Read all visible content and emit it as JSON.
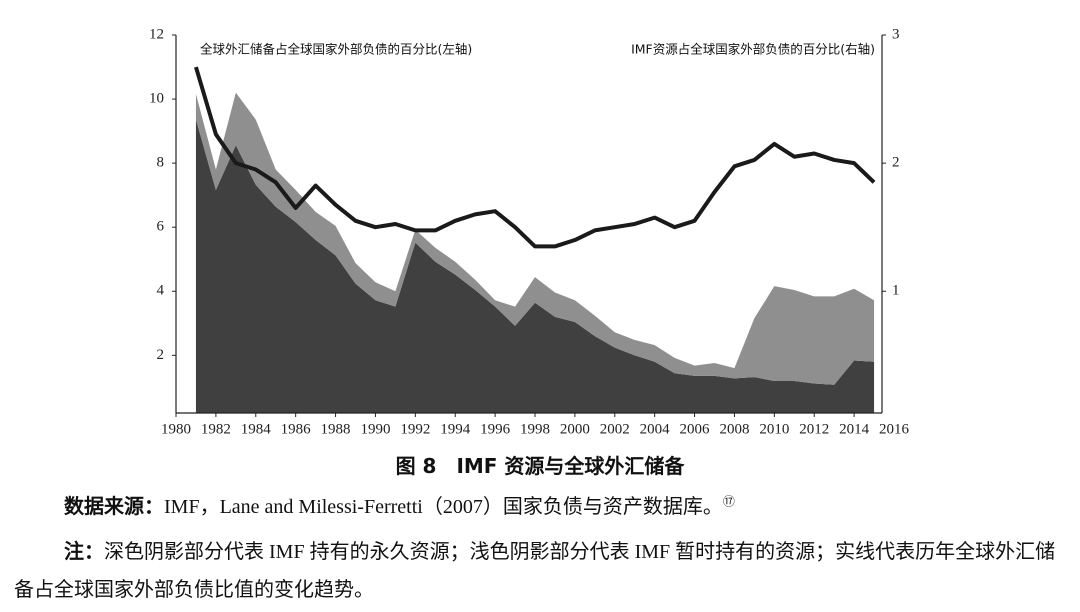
{
  "chart_data": {
    "type": "area",
    "stacked": true,
    "annotations": [
      "全球外汇储备占全球国家外部负债的百分比(左轴)",
      "IMF资源占全球国家外部负债的百分比(右轴)"
    ],
    "x": [
      1981,
      1982,
      1983,
      1984,
      1985,
      1986,
      1987,
      1988,
      1989,
      1990,
      1991,
      1992,
      1993,
      1994,
      1995,
      1996,
      1997,
      1998,
      1999,
      2000,
      2001,
      2002,
      2003,
      2004,
      2005,
      2006,
      2007,
      2008,
      2009,
      2010,
      2011,
      2012,
      2013,
      2014,
      2015
    ],
    "series": [
      {
        "type": "area",
        "axis": "y2",
        "color": "#404040",
        "values": [
          2.34,
          1.79,
          2.14,
          1.83,
          1.66,
          1.54,
          1.4,
          1.28,
          1.06,
          0.93,
          0.88,
          1.38,
          1.23,
          1.13,
          1.01,
          0.88,
          0.73,
          0.91,
          0.8,
          0.76,
          0.65,
          0.56,
          0.5,
          0.45,
          0.36,
          0.34,
          0.34,
          0.32,
          0.33,
          0.3,
          0.3,
          0.28,
          0.27,
          0.46,
          0.45
        ]
      },
      {
        "type": "area",
        "axis": "y2",
        "color": "#8f8f8f",
        "values": [
          0.2,
          0.16,
          0.41,
          0.51,
          0.29,
          0.25,
          0.22,
          0.23,
          0.16,
          0.14,
          0.12,
          0.1,
          0.11,
          0.1,
          0.08,
          0.05,
          0.15,
          0.2,
          0.19,
          0.17,
          0.16,
          0.12,
          0.12,
          0.13,
          0.12,
          0.08,
          0.1,
          0.08,
          0.46,
          0.74,
          0.71,
          0.68,
          0.69,
          0.56,
          0.48
        ]
      },
      {
        "type": "line",
        "axis": "y",
        "color": "#1a1a1a",
        "values": [
          11.0,
          8.9,
          8.0,
          7.8,
          7.4,
          6.6,
          7.3,
          6.7,
          6.2,
          6.0,
          6.1,
          5.9,
          5.9,
          6.2,
          6.4,
          6.5,
          6.0,
          5.4,
          5.4,
          5.6,
          5.9,
          6.0,
          6.1,
          6.3,
          6.0,
          6.2,
          7.1,
          7.9,
          8.1,
          8.6,
          8.2,
          8.3,
          8.1,
          8.0,
          7.4
        ]
      }
    ],
    "xlim": [
      1980,
      2016
    ],
    "xticks": [
      1980,
      1982,
      1984,
      1986,
      1988,
      1990,
      1992,
      1994,
      1996,
      1998,
      2000,
      2002,
      2004,
      2006,
      2008,
      2010,
      2012,
      2014,
      2016
    ],
    "ylim": [
      0.2,
      12
    ],
    "yticks": [
      2,
      4,
      6,
      8,
      10,
      12
    ],
    "y2lim": [
      0.05,
      3
    ],
    "y2ticks": [
      1,
      2,
      3
    ]
  },
  "caption": "图 8　IMF 资源与全球外汇储备",
  "source": {
    "label": "数据来源：",
    "text": "IMF，Lane and Milessi-Ferretti（2007）国家负债与资产数据库。",
    "footnote": "⑰"
  },
  "note": {
    "label": "注：",
    "text": "深色阴影部分代表 IMF 持有的永久资源；浅色阴影部分代表 IMF 暂时持有的资源；实线代表历年全球外汇储备占全球国家外部负债比值的变化趋势。"
  }
}
